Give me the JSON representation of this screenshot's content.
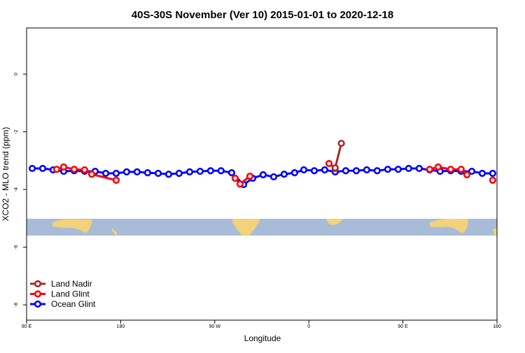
{
  "chart_data": {
    "type": "line",
    "title": "40S-30S November (Ver 10)   2015-01-01 to 2020-12-18",
    "xlabel": "Longitude",
    "ylabel": "XCO2 - MLO trend (ppm)",
    "xlim": [
      90,
      540
    ],
    "xticks": [
      {
        "value": 90,
        "label": "90 E"
      },
      {
        "value": 180,
        "label": "180"
      },
      {
        "value": 270,
        "label": "90 W"
      },
      {
        "value": 360,
        "label": "0"
      },
      {
        "value": 450,
        "label": "90 E"
      },
      {
        "value": 540,
        "label": "180"
      }
    ],
    "ylim": [
      -8.53,
      1.6
    ],
    "yticks": [
      0,
      -2,
      -4,
      -6,
      -8
    ],
    "legend": "bottom-left",
    "series": [
      {
        "name": "Land Nadir",
        "color": "#a52a2a",
        "x": [
          385.2,
          391.1
        ],
        "values": [
          -3.25,
          -2.4
        ]
      },
      {
        "name": "Land Glint",
        "color": "#ff0000",
        "x": [
          118.8,
          125.5,
          135.5,
          145.5,
          152.3,
          175.7,
          null,
          289.5,
          294.2,
          303.6,
          null,
          379.3,
          385.2,
          null,
          475.6,
          483.7,
          495.7,
          505.7,
          511.2,
          null,
          535.9
        ],
        "values": [
          -3.3,
          -3.22,
          -3.3,
          -3.32,
          -3.47,
          -3.68,
          null,
          -3.61,
          -3.81,
          -3.54,
          null,
          -3.1,
          -3.27,
          null,
          -3.3,
          -3.22,
          -3.3,
          -3.3,
          -3.49,
          null,
          -3.68
        ]
      },
      {
        "name": "Ocean Glint",
        "color": "#0000ff",
        "x": [
          95.4,
          105.4,
          115.4,
          125.5,
          135.5,
          145.5,
          155.6,
          165.7,
          175.7,
          185.7,
          195.7,
          205.8,
          215.9,
          225.9,
          235.9,
          246,
          256,
          266,
          276,
          286.2,
          297.6,
          306.3,
          316.3,
          326.4,
          336.4,
          346.4,
          355.2,
          365.2,
          375.2,
          385.2,
          395.3,
          405.4,
          415.4,
          425.4,
          435.5,
          445.5,
          455.5,
          465.6,
          475.6,
          485.6,
          495.7,
          505.7,
          515.9,
          525.9,
          535.9
        ],
        "values": [
          -3.27,
          -3.27,
          -3.32,
          -3.37,
          -3.35,
          -3.37,
          -3.37,
          -3.44,
          -3.44,
          -3.39,
          -3.39,
          -3.42,
          -3.44,
          -3.47,
          -3.44,
          -3.39,
          -3.37,
          -3.35,
          -3.35,
          -3.42,
          -3.83,
          -3.61,
          -3.49,
          -3.56,
          -3.47,
          -3.42,
          -3.32,
          -3.35,
          -3.32,
          -3.39,
          -3.35,
          -3.35,
          -3.32,
          -3.35,
          -3.3,
          -3.3,
          -3.27,
          -3.27,
          -3.32,
          -3.37,
          -3.35,
          -3.37,
          -3.37,
          -3.44,
          -3.44
        ]
      }
    ]
  }
}
